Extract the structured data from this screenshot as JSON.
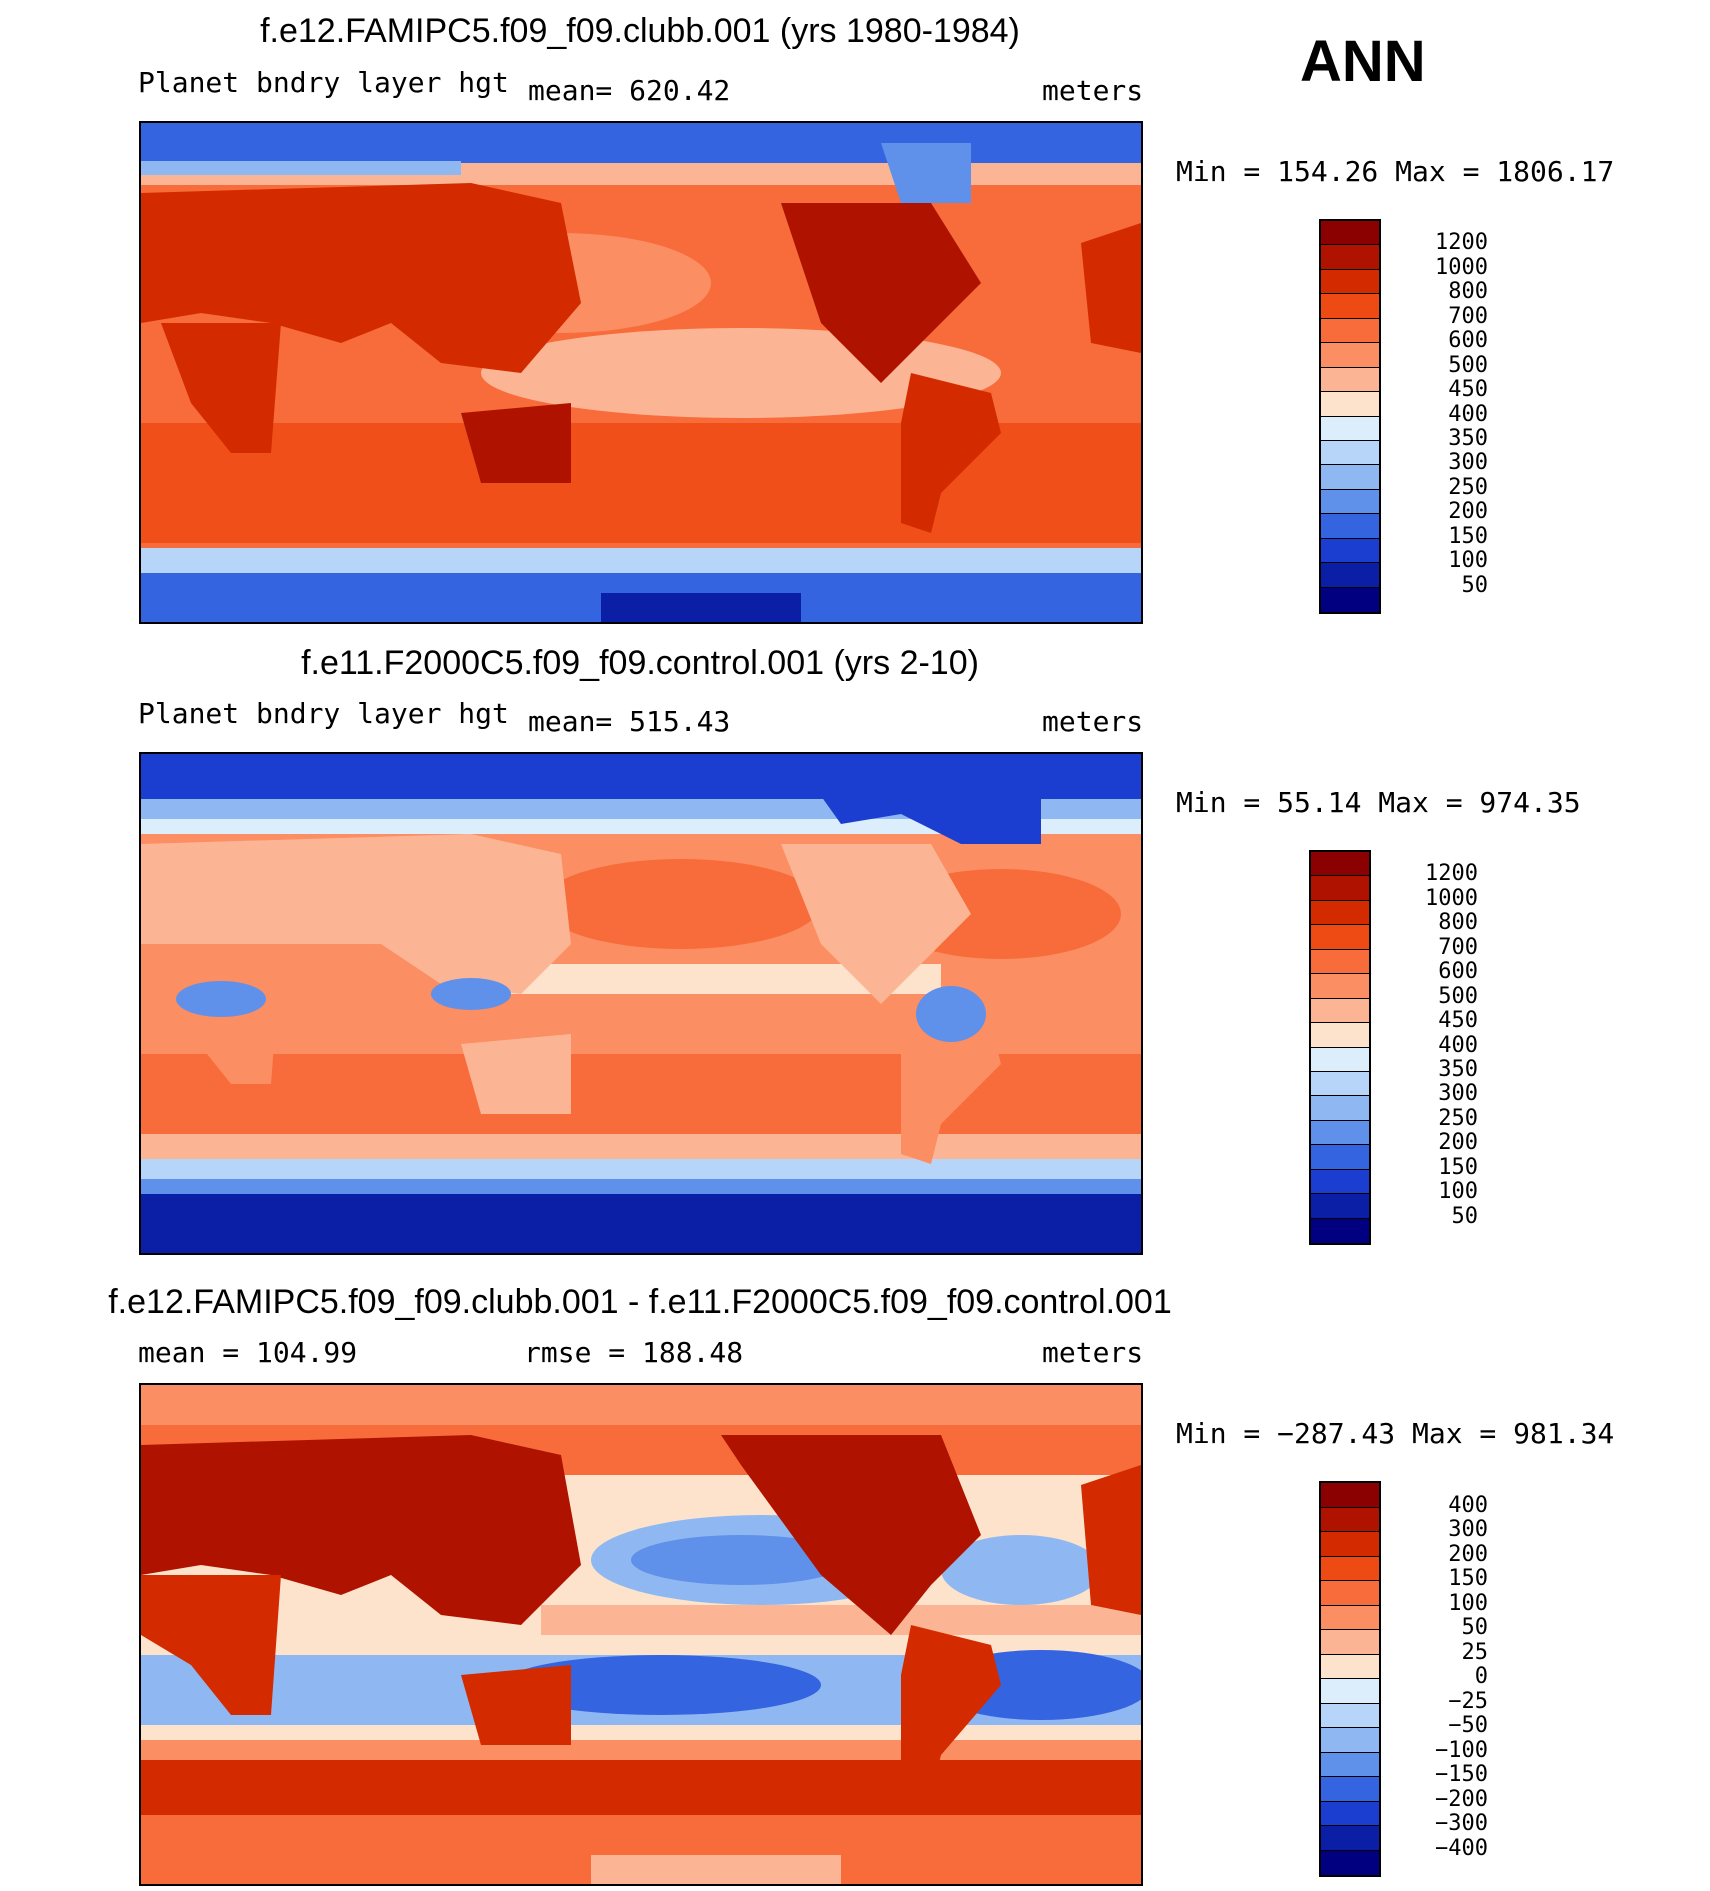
{
  "season": "ANN",
  "panels": [
    {
      "title": "f.e12.FAMIPC5.f09_f09.clubb.001 (yrs 1980-1984)",
      "left_label": "Planet bndry layer hgt",
      "center_label": "mean= 620.42",
      "units": "meters",
      "minmax": "Min = 154.26 Max = 1806.17",
      "colorbar": {
        "labels": [
          "1200",
          "1000",
          "800",
          "700",
          "600",
          "500",
          "450",
          "400",
          "350",
          "300",
          "250",
          "200",
          "150",
          "100",
          "50"
        ],
        "colors": [
          "#8b0000",
          "#b01200",
          "#d42a00",
          "#ee4a14",
          "#f76c3a",
          "#fb8e62",
          "#fcb594",
          "#fde3cc",
          "#dcedfb",
          "#b6d5f8",
          "#8fb8f2",
          "#5f90ea",
          "#3564e0",
          "#1c3ed0",
          "#0b1fa6",
          "#000080"
        ]
      }
    },
    {
      "title": "f.e11.F2000C5.f09_f09.control.001 (yrs 2-10)",
      "left_label": "Planet bndry layer hgt",
      "center_label": "mean= 515.43",
      "units": "meters",
      "minmax": "Min =   55.14 Max = 974.35",
      "colorbar": {
        "labels": [
          "1200",
          "1000",
          "800",
          "700",
          "600",
          "500",
          "450",
          "400",
          "350",
          "300",
          "250",
          "200",
          "150",
          "100",
          "50"
        ],
        "colors": [
          "#8b0000",
          "#b01200",
          "#d42a00",
          "#ee4a14",
          "#f76c3a",
          "#fb8e62",
          "#fcb594",
          "#fde3cc",
          "#dcedfb",
          "#b6d5f8",
          "#8fb8f2",
          "#5f90ea",
          "#3564e0",
          "#1c3ed0",
          "#0b1fa6",
          "#000080"
        ]
      }
    },
    {
      "title": "f.e12.FAMIPC5.f09_f09.clubb.001 - f.e11.F2000C5.f09_f09.control.001",
      "left_label": "mean = 104.99",
      "center_label": "rmse = 188.48",
      "units": "meters",
      "minmax": "Min = −287.43 Max = 981.34",
      "colorbar": {
        "labels": [
          "400",
          "300",
          "200",
          "150",
          "100",
          "50",
          "25",
          "0",
          "−25",
          "−50",
          "−100",
          "−150",
          "−200",
          "−300",
          "−400"
        ],
        "colors": [
          "#8b0000",
          "#b01200",
          "#d42a00",
          "#ee4a14",
          "#f76c3a",
          "#fb8e62",
          "#fcb594",
          "#fde3cc",
          "#dcedfb",
          "#b6d5f8",
          "#8fb8f2",
          "#5f90ea",
          "#3564e0",
          "#1c3ed0",
          "#0b1fa6",
          "#000080"
        ]
      }
    }
  ]
}
